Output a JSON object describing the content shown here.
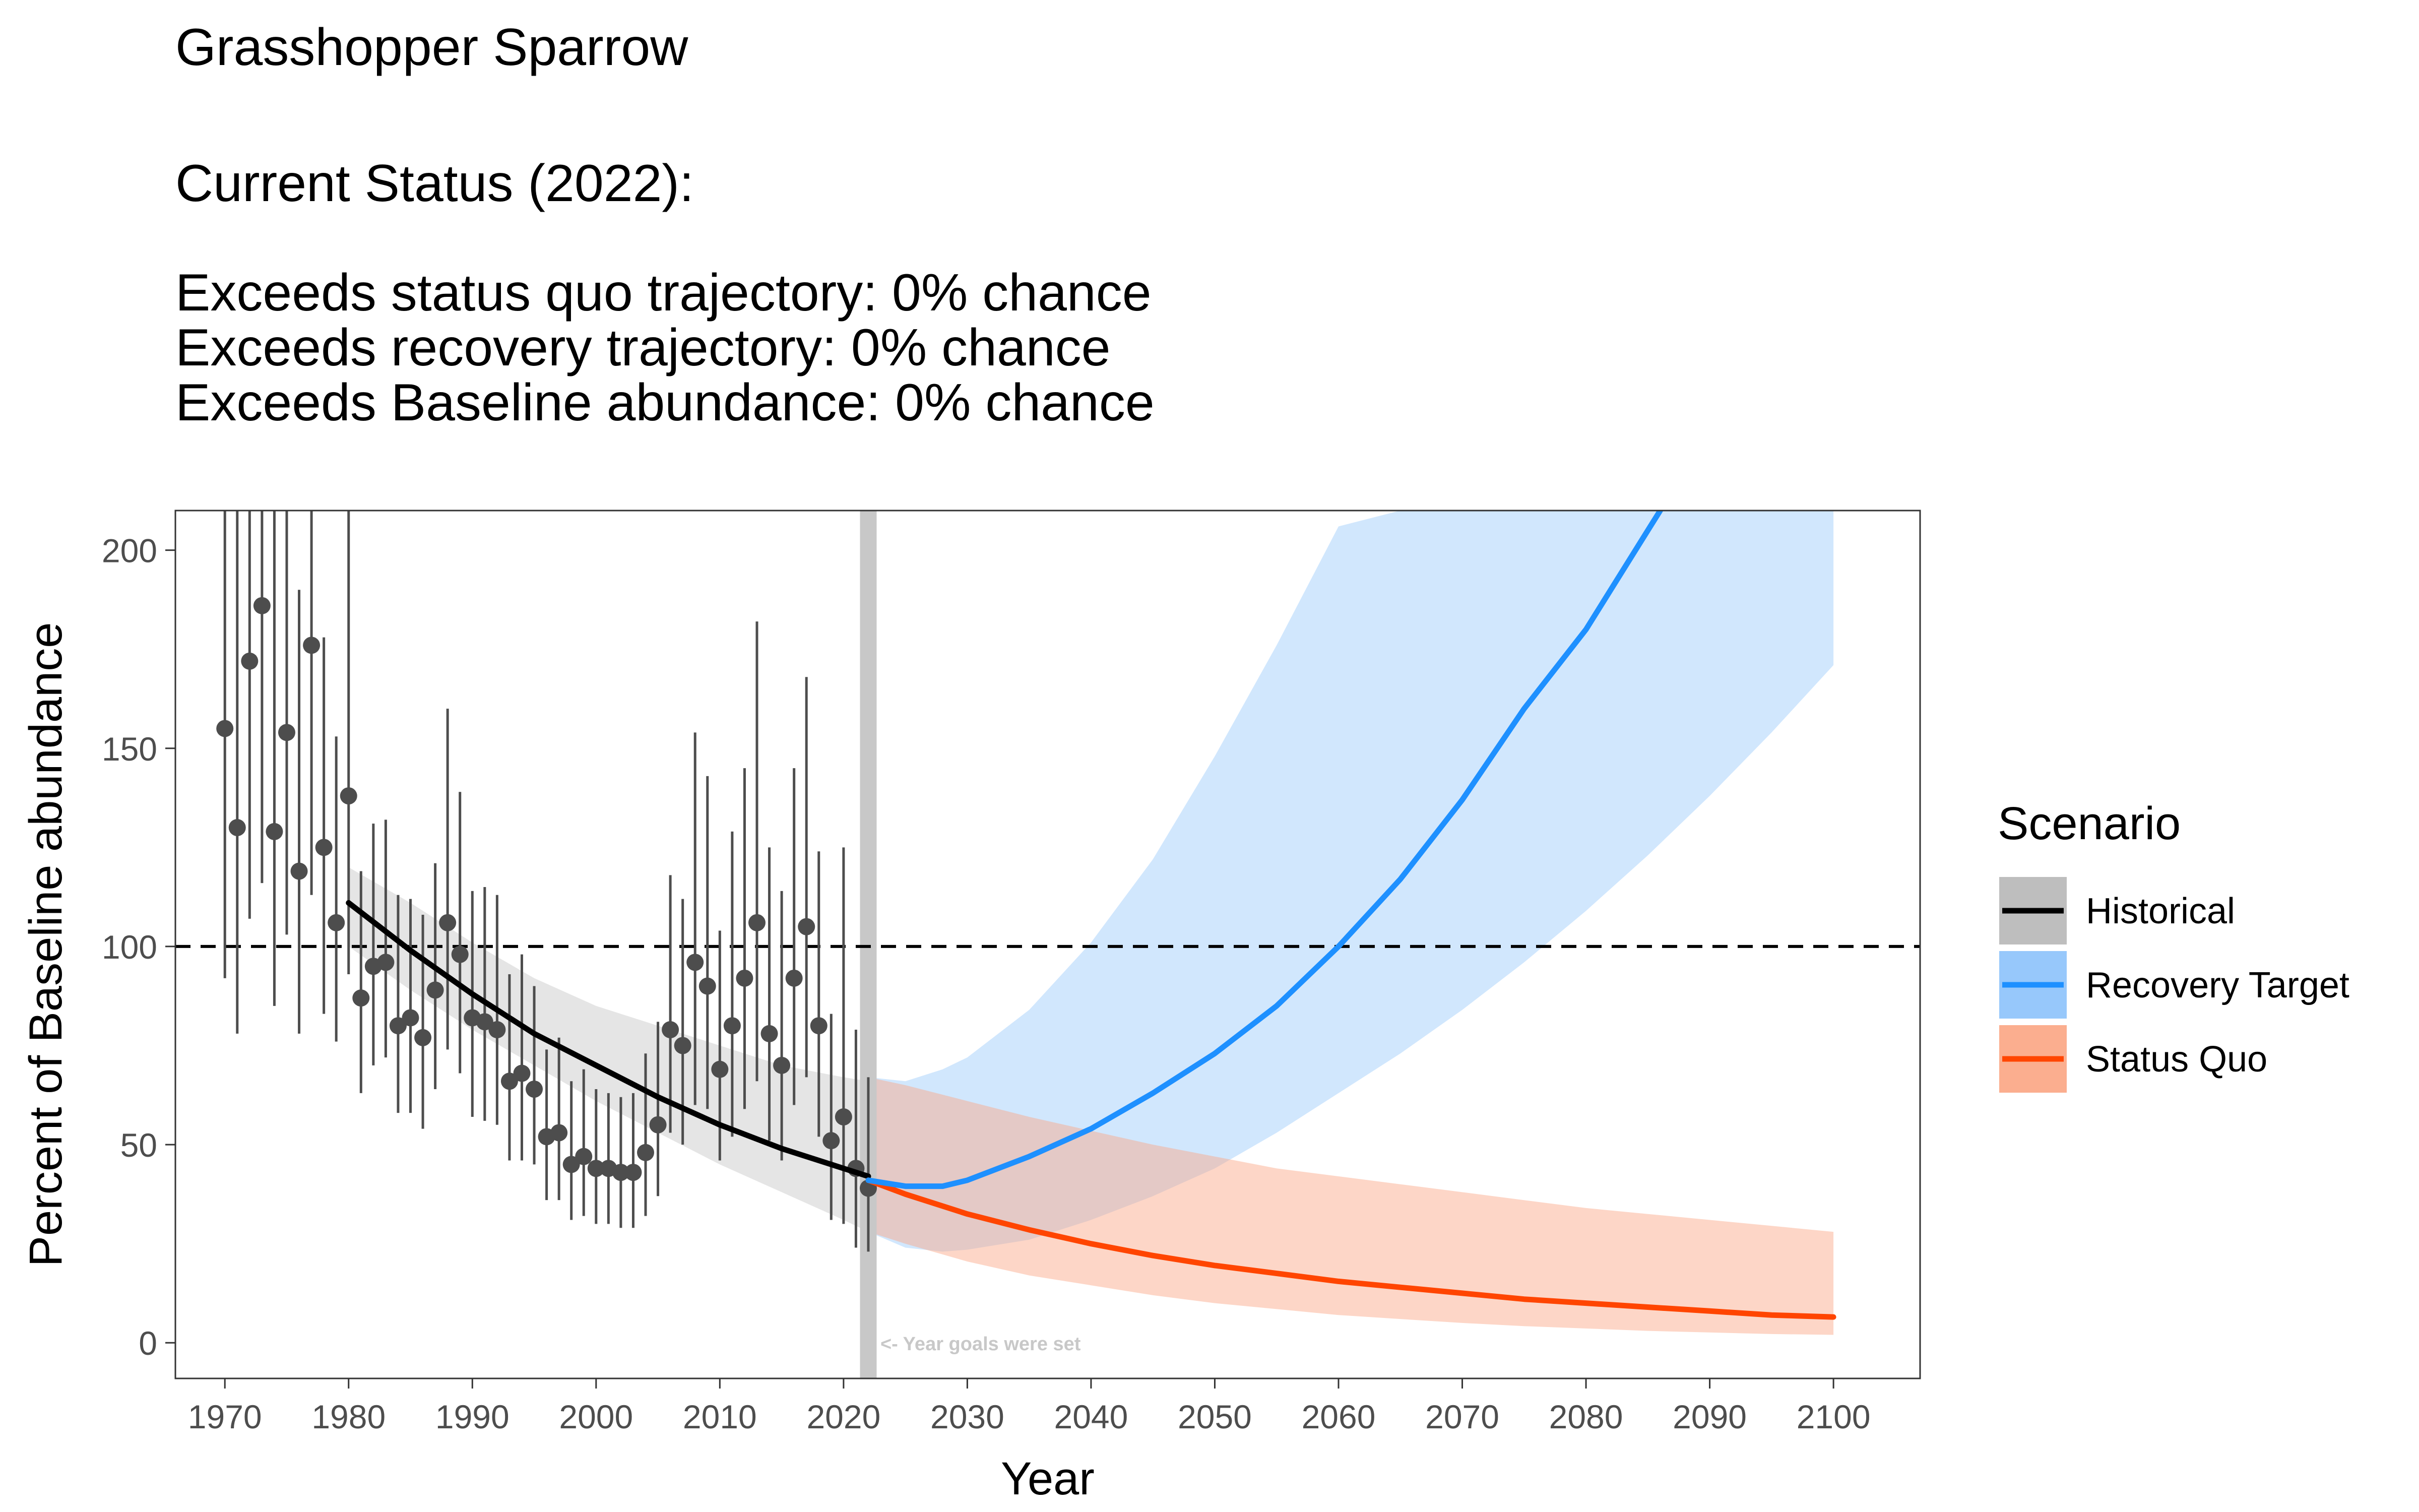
{
  "header": {
    "title": "Grasshopper Sparrow",
    "status_heading": "Current Status (2022):",
    "lines": [
      "Exceeds status quo trajectory: 0% chance",
      "Exceeds recovery trajectory: 0% chance",
      "Exceeds Baseline abundance: 0% chance"
    ]
  },
  "chart_data": {
    "type": "line",
    "title": "Grasshopper Sparrow",
    "xlabel": "Year",
    "ylabel": "Percent of Baseline abundance",
    "xlim": [
      1966,
      2107
    ],
    "ylim": [
      -9,
      210
    ],
    "x_ticks": [
      1970,
      1980,
      1990,
      2000,
      2010,
      2020,
      2030,
      2040,
      2050,
      2060,
      2070,
      2080,
      2090,
      2100
    ],
    "y_ticks": [
      0,
      50,
      100,
      150,
      200
    ],
    "grid": false,
    "reference_line": {
      "y": 100,
      "style": "dashed",
      "color": "#000000"
    },
    "goal_year_marker": {
      "x": 2022,
      "label": "<- Year goals were set",
      "color": "#c8c8c8"
    },
    "legend": {
      "title": "Scenario",
      "placement": "right",
      "entries": [
        {
          "label": "Historical",
          "line_color": "#000000",
          "fill_color": "#bebebe"
        },
        {
          "label": "Recovery Target",
          "line_color": "#1e90ff",
          "fill_color": "#8cc2fb"
        },
        {
          "label": "Status Quo",
          "line_color": "#ff4500",
          "fill_color": "#fba583"
        }
      ]
    },
    "observations": {
      "color": "#4d4d4d",
      "points": [
        {
          "x": 1970,
          "y": 155,
          "lo": 92,
          "hi": 210
        },
        {
          "x": 1971,
          "y": 130,
          "lo": 78,
          "hi": 210
        },
        {
          "x": 1972,
          "y": 172,
          "lo": 107,
          "hi": 210
        },
        {
          "x": 1973,
          "y": 186,
          "lo": 116,
          "hi": 210
        },
        {
          "x": 1974,
          "y": 129,
          "lo": 85,
          "hi": 210
        },
        {
          "x": 1975,
          "y": 154,
          "lo": 103,
          "hi": 210
        },
        {
          "x": 1976,
          "y": 119,
          "lo": 78,
          "hi": 190
        },
        {
          "x": 1977,
          "y": 176,
          "lo": 113,
          "hi": 210
        },
        {
          "x": 1978,
          "y": 125,
          "lo": 83,
          "hi": 178
        },
        {
          "x": 1979,
          "y": 106,
          "lo": 76,
          "hi": 153
        },
        {
          "x": 1980,
          "y": 138,
          "lo": 93,
          "hi": 210
        },
        {
          "x": 1981,
          "y": 87,
          "lo": 63,
          "hi": 119
        },
        {
          "x": 1982,
          "y": 95,
          "lo": 70,
          "hi": 131
        },
        {
          "x": 1983,
          "y": 96,
          "lo": 72,
          "hi": 132
        },
        {
          "x": 1984,
          "y": 80,
          "lo": 58,
          "hi": 113
        },
        {
          "x": 1985,
          "y": 82,
          "lo": 58,
          "hi": 112
        },
        {
          "x": 1986,
          "y": 77,
          "lo": 54,
          "hi": 108
        },
        {
          "x": 1987,
          "y": 89,
          "lo": 64,
          "hi": 121
        },
        {
          "x": 1988,
          "y": 106,
          "lo": 74,
          "hi": 160
        },
        {
          "x": 1989,
          "y": 98,
          "lo": 68,
          "hi": 139
        },
        {
          "x": 1990,
          "y": 82,
          "lo": 57,
          "hi": 114
        },
        {
          "x": 1991,
          "y": 81,
          "lo": 56,
          "hi": 115
        },
        {
          "x": 1992,
          "y": 79,
          "lo": 55,
          "hi": 113
        },
        {
          "x": 1993,
          "y": 66,
          "lo": 46,
          "hi": 93
        },
        {
          "x": 1994,
          "y": 68,
          "lo": 46,
          "hi": 98
        },
        {
          "x": 1995,
          "y": 64,
          "lo": 45,
          "hi": 90
        },
        {
          "x": 1996,
          "y": 52,
          "lo": 36,
          "hi": 74
        },
        {
          "x": 1997,
          "y": 53,
          "lo": 36,
          "hi": 77
        },
        {
          "x": 1998,
          "y": 45,
          "lo": 31,
          "hi": 66
        },
        {
          "x": 1999,
          "y": 47,
          "lo": 32,
          "hi": 69
        },
        {
          "x": 2000,
          "y": 44,
          "lo": 30,
          "hi": 64
        },
        {
          "x": 2001,
          "y": 44,
          "lo": 30,
          "hi": 63
        },
        {
          "x": 2002,
          "y": 43,
          "lo": 29,
          "hi": 62
        },
        {
          "x": 2003,
          "y": 43,
          "lo": 29,
          "hi": 63
        },
        {
          "x": 2004,
          "y": 48,
          "lo": 32,
          "hi": 73
        },
        {
          "x": 2005,
          "y": 55,
          "lo": 37,
          "hi": 81
        },
        {
          "x": 2006,
          "y": 79,
          "lo": 53,
          "hi": 118
        },
        {
          "x": 2007,
          "y": 75,
          "lo": 50,
          "hi": 112
        },
        {
          "x": 2008,
          "y": 96,
          "lo": 60,
          "hi": 154
        },
        {
          "x": 2009,
          "y": 90,
          "lo": 59,
          "hi": 143
        },
        {
          "x": 2010,
          "y": 69,
          "lo": 46,
          "hi": 104
        },
        {
          "x": 2011,
          "y": 80,
          "lo": 52,
          "hi": 129
        },
        {
          "x": 2012,
          "y": 92,
          "lo": 59,
          "hi": 145
        },
        {
          "x": 2013,
          "y": 106,
          "lo": 66,
          "hi": 182
        },
        {
          "x": 2014,
          "y": 78,
          "lo": 51,
          "hi": 125
        },
        {
          "x": 2015,
          "y": 70,
          "lo": 46,
          "hi": 114
        },
        {
          "x": 2016,
          "y": 92,
          "lo": 60,
          "hi": 145
        },
        {
          "x": 2017,
          "y": 105,
          "lo": 67,
          "hi": 168
        },
        {
          "x": 2018,
          "y": 80,
          "lo": 52,
          "hi": 124
        },
        {
          "x": 2019,
          "y": 51,
          "lo": 31,
          "hi": 83
        },
        {
          "x": 2020,
          "y": 57,
          "lo": 30,
          "hi": 125
        },
        {
          "x": 2021,
          "y": 44,
          "lo": 24,
          "hi": 79
        },
        {
          "x": 2022,
          "y": 39,
          "lo": 23,
          "hi": 67
        }
      ]
    },
    "series": [
      {
        "name": "Historical",
        "color": "#000000",
        "band_color": "#bebebe",
        "x": [
          1980,
          1985,
          1990,
          1995,
          2000,
          2005,
          2010,
          2015,
          2020,
          2022
        ],
        "y": [
          111,
          99,
          88,
          78,
          70,
          62,
          55,
          49,
          44,
          42
        ],
        "lower": [
          100,
          89,
          79,
          70,
          61,
          53,
          45,
          38,
          31,
          28
        ],
        "upper": [
          120,
          111,
          101,
          92,
          85,
          80,
          75,
          70,
          67,
          66
        ]
      },
      {
        "name": "Recovery Target",
        "color": "#1e90ff",
        "band_color": "#8cc2fb",
        "x": [
          2022,
          2025,
          2028,
          2030,
          2035,
          2040,
          2045,
          2050,
          2055,
          2060,
          2065,
          2070,
          2075,
          2080,
          2085,
          2086
        ],
        "y": [
          41,
          39.5,
          39.5,
          41,
          47,
          54,
          63,
          73,
          85,
          100,
          117,
          137,
          160,
          180,
          205,
          210
        ],
        "band": {
          "x": [
            2022,
            2025,
            2028,
            2030,
            2035,
            2040,
            2045,
            2050,
            2055,
            2060,
            2065,
            2070,
            2075,
            2080,
            2085,
            2090,
            2095,
            2100
          ],
          "lower": [
            28,
            24,
            23,
            23.5,
            26,
            31,
            37,
            44,
            53,
            63,
            73,
            84,
            96,
            109,
            123,
            138,
            154,
            171
          ],
          "upper": [
            67,
            66,
            69,
            72,
            84,
            101,
            122,
            148,
            176,
            206,
            210,
            210,
            210,
            210,
            210,
            210,
            210,
            210
          ]
        }
      },
      {
        "name": "Status Quo",
        "color": "#ff4500",
        "band_color": "#fba583",
        "x": [
          2022,
          2025,
          2030,
          2035,
          2040,
          2045,
          2050,
          2055,
          2060,
          2065,
          2070,
          2075,
          2080,
          2085,
          2090,
          2095,
          2100
        ],
        "y": [
          41,
          37.5,
          32.5,
          28.5,
          25,
          22,
          19.5,
          17.5,
          15.5,
          14,
          12.5,
          11,
          10,
          9,
          8,
          7,
          6.5
        ],
        "lower": [
          28,
          25,
          20.5,
          17,
          14.5,
          12,
          10,
          8.5,
          7,
          6,
          5,
          4.2,
          3.6,
          3,
          2.6,
          2.2,
          2
        ],
        "upper": [
          67,
          65,
          61,
          57,
          53.5,
          50,
          47,
          44,
          42,
          40,
          38,
          36,
          34,
          32.5,
          31,
          29.5,
          28
        ]
      }
    ]
  }
}
